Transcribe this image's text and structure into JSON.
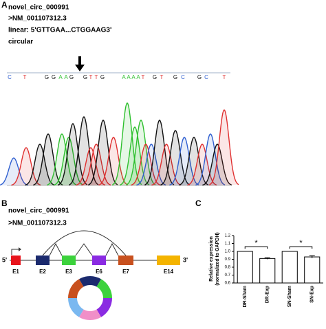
{
  "panel_a": {
    "label": "A",
    "lines": [
      "novel_circ_000991",
      ">NM_001107312.3",
      "linear: 5'GTTGAA...CTGGAAG3'",
      "circular"
    ],
    "bases": [
      "C",
      "T",
      "G",
      "G",
      "A",
      "A",
      "G",
      "G",
      "T",
      "T",
      "G",
      "A",
      "A",
      "A",
      "A",
      "T",
      "G",
      "T",
      "G",
      "C",
      "G",
      "C",
      "T"
    ]
  },
  "panel_b": {
    "label": "B",
    "lines": [
      "novel_circ_000991",
      ">NM_001107312.3"
    ],
    "five_prime": "5'",
    "three_prime": "3'",
    "exons": [
      "E1",
      "E2",
      "E3",
      "E6",
      "E7",
      "E14"
    ]
  },
  "chart_data": {
    "type": "bar",
    "panel_label": "C",
    "y_label": [
      "Relative expression",
      "(normalized to GAPDH)"
    ],
    "categories": [
      "DR-Sham",
      "DR-Exp",
      "SN-Sham",
      "SN-Exp"
    ],
    "values": [
      1.0,
      0.91,
      1.0,
      0.93
    ],
    "errors": [
      0,
      0.01,
      0,
      0.015
    ],
    "color": "#ffffff",
    "ylim": [
      0.6,
      1.2
    ],
    "yticks": [
      0.6,
      0.7,
      0.8,
      0.9,
      {
        "value": 1,
        "label": "1.0"
      },
      1.1,
      1.2
    ],
    "significance": [
      "*",
      "*"
    ]
  }
}
